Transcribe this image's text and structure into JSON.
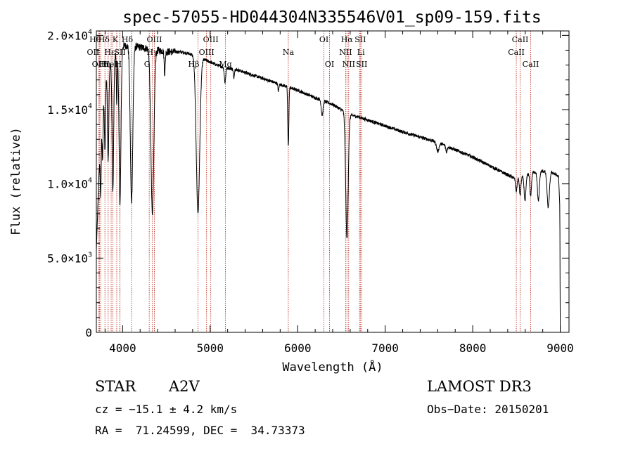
{
  "chart_data": {
    "type": "line",
    "title": "spec-57055-HD044304N335546V01_sp09-159.fits",
    "xlabel": "Wavelength (Å)",
    "ylabel": "Flux (relative)",
    "xlim": [
      3700,
      9100
    ],
    "ylim": [
      0,
      20300
    ],
    "x_ticks": [
      {
        "value": 4000,
        "label": "4000"
      },
      {
        "value": 5000,
        "label": "5000"
      },
      {
        "value": 6000,
        "label": "6000"
      },
      {
        "value": 7000,
        "label": "7000"
      },
      {
        "value": 8000,
        "label": "8000"
      },
      {
        "value": 9000,
        "label": "9000"
      }
    ],
    "y_ticks": [
      {
        "value": 0,
        "mant": "0",
        "exp": ""
      },
      {
        "value": 5000,
        "mant": "5.0×10",
        "exp": "3"
      },
      {
        "value": 10000,
        "mant": "1.0×10",
        "exp": "4"
      },
      {
        "value": 15000,
        "mant": "1.5×10",
        "exp": "4"
      },
      {
        "value": 20000,
        "mant": "2.0×10",
        "exp": "4"
      }
    ],
    "continuum": [
      [
        3700,
        5500
      ],
      [
        3720,
        9000
      ],
      [
        3740,
        12000
      ],
      [
        3760,
        14500
      ],
      [
        3780,
        15800
      ],
      [
        3800,
        16800
      ],
      [
        3850,
        17800
      ],
      [
        3900,
        18600
      ],
      [
        3950,
        19100
      ],
      [
        4000,
        19300
      ],
      [
        4100,
        19300
      ],
      [
        4200,
        19200
      ],
      [
        4300,
        19100
      ],
      [
        4400,
        19000
      ],
      [
        4500,
        18900
      ],
      [
        4600,
        18900
      ],
      [
        4700,
        18850
      ],
      [
        4800,
        18700
      ],
      [
        4900,
        18450
      ],
      [
        5000,
        18200
      ],
      [
        5100,
        17950
      ],
      [
        5200,
        17800
      ],
      [
        5300,
        17700
      ],
      [
        5500,
        17300
      ],
      [
        5700,
        16900
      ],
      [
        5900,
        16500
      ],
      [
        6000,
        16300
      ],
      [
        6200,
        15800
      ],
      [
        6400,
        15350
      ],
      [
        6600,
        14650
      ],
      [
        6700,
        14500
      ],
      [
        6800,
        14300
      ],
      [
        7000,
        13900
      ],
      [
        7200,
        13500
      ],
      [
        7400,
        13150
      ],
      [
        7600,
        12800
      ],
      [
        7800,
        12300
      ],
      [
        8000,
        11800
      ],
      [
        8200,
        11200
      ],
      [
        8400,
        10600
      ],
      [
        8500,
        10300
      ],
      [
        8600,
        10550
      ],
      [
        8700,
        10800
      ],
      [
        8800,
        10850
      ],
      [
        8900,
        10800
      ],
      [
        8980,
        10500
      ],
      [
        8995,
        8500
      ],
      [
        9000,
        0
      ]
    ],
    "absorption": [
      {
        "center": 3750,
        "depth": 4000,
        "width": 6
      },
      {
        "center": 3771,
        "depth": 3500,
        "width": 6
      },
      {
        "center": 3798,
        "depth": 4500,
        "width": 6
      },
      {
        "center": 3835,
        "depth": 6000,
        "width": 7
      },
      {
        "center": 3889,
        "depth": 9000,
        "width": 9
      },
      {
        "center": 3933,
        "depth": 3500,
        "width": 5
      },
      {
        "center": 3970,
        "depth": 10500,
        "width": 11
      },
      {
        "center": 4102,
        "depth": 10500,
        "width": 14
      },
      {
        "center": 4340,
        "depth": 11000,
        "width": 17
      },
      {
        "center": 4481,
        "depth": 1500,
        "width": 6
      },
      {
        "center": 4861,
        "depth": 10500,
        "width": 20
      },
      {
        "center": 5170,
        "depth": 1000,
        "width": 8
      },
      {
        "center": 5270,
        "depth": 600,
        "width": 6
      },
      {
        "center": 5780,
        "depth": 500,
        "width": 6
      },
      {
        "center": 5893,
        "depth": 4000,
        "width": 6
      },
      {
        "center": 6280,
        "depth": 1000,
        "width": 10
      },
      {
        "center": 6563,
        "depth": 8500,
        "width": 14
      },
      {
        "center": 7600,
        "depth": 600,
        "width": 14
      },
      {
        "center": 7700,
        "depth": 400,
        "width": 8
      },
      {
        "center": 8498,
        "depth": 800,
        "width": 8
      },
      {
        "center": 8542,
        "depth": 1200,
        "width": 8
      },
      {
        "center": 8598,
        "depth": 1700,
        "width": 10
      },
      {
        "center": 8662,
        "depth": 1500,
        "width": 9
      },
      {
        "center": 8750,
        "depth": 2000,
        "width": 11
      },
      {
        "center": 8863,
        "depth": 2400,
        "width": 13
      }
    ],
    "lines": [
      {
        "wave": 3750,
        "label": "Hθ",
        "row": 1
      },
      {
        "wave": 3727,
        "label": "OII",
        "row": 2
      },
      {
        "wave": 3737,
        "label": "OIII",
        "row": 3
      },
      {
        "wave": 3798,
        "label": "Hη",
        "row": 3
      },
      {
        "wave": 3835,
        "label": "Hδ",
        "row": 1
      },
      {
        "wave": 3869,
        "label": "Hε",
        "row": 2
      },
      {
        "wave": 3889,
        "label": "HeI",
        "row": 3
      },
      {
        "wave": 3933,
        "label": "K",
        "row": 1
      },
      {
        "wave": 3970,
        "label": "SII",
        "row": 2
      },
      {
        "wave": 3968,
        "label": "H",
        "row": 3
      },
      {
        "wave": 4102,
        "label": "Hδ",
        "row": 1
      },
      {
        "wave": 4304,
        "label": "G",
        "row": 3
      },
      {
        "wave": 4340,
        "label": "Hγ",
        "row": 2
      },
      {
        "wave": 4363,
        "label": "OIII",
        "row": 1
      },
      {
        "wave": 4861,
        "label": "Hβ",
        "row": 3
      },
      {
        "wave": 4959,
        "label": "OIII",
        "row": 2
      },
      {
        "wave": 5007,
        "label": "OIII",
        "row": 1
      },
      {
        "wave": 5175,
        "label": "Mg",
        "row": 3
      },
      {
        "wave": 5893,
        "label": "Na",
        "row": 2
      },
      {
        "wave": 6300,
        "label": "OI",
        "row": 1
      },
      {
        "wave": 6364,
        "label": "OI",
        "row": 3
      },
      {
        "wave": 6548,
        "label": "NII",
        "row": 2
      },
      {
        "wave": 6563,
        "label": "Hα",
        "row": 1
      },
      {
        "wave": 6583,
        "label": "NII",
        "row": 3
      },
      {
        "wave": 6707,
        "label": "Li",
        "row": 2
      },
      {
        "wave": 6716,
        "label": "SII",
        "row": 1
      },
      {
        "wave": 6731,
        "label": "SII",
        "row": 3
      },
      {
        "wave": 8498,
        "label": "CaII",
        "row": 2
      },
      {
        "wave": 8542,
        "label": "CaII",
        "row": 1
      },
      {
        "wave": 8662,
        "label": "CaII",
        "row": 3
      }
    ]
  },
  "info": {
    "object_class": "STAR",
    "subclass": "A2V",
    "survey": "LAMOST DR3",
    "cz": "cz = −15.1 ± 4.2 km/s",
    "obs_date": "Obs−Date: 20150201",
    "coords": "RA =  71.24599, DEC =  34.73373"
  },
  "colors": {
    "spectrum": "#000000",
    "line_marker": "#c0392b",
    "axis": "#000000"
  }
}
